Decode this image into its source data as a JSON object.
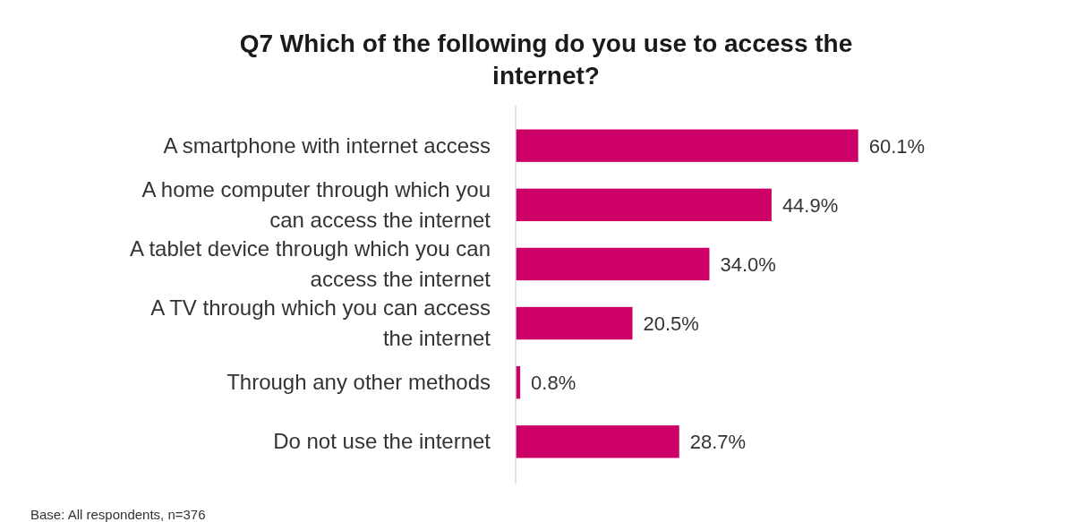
{
  "chart_data": {
    "type": "bar",
    "orientation": "horizontal",
    "title": "Q7 Which of the following do you use to access the internet?",
    "categories": [
      "A smartphone with internet access",
      "A home computer through which you can access the internet",
      "A tablet device through which you can access the internet",
      "A TV through which you can access the internet",
      "Through any other methods",
      "Do not use the internet"
    ],
    "values": [
      60.1,
      44.9,
      34.0,
      20.5,
      0.8,
      28.7
    ],
    "value_labels": [
      "60.1%",
      "44.9%",
      "34.0%",
      "20.5%",
      "0.8%",
      "28.7%"
    ],
    "color": "#cc0066",
    "data_labels": true,
    "annotations": [
      "Base: All respondents, n=376"
    ]
  }
}
